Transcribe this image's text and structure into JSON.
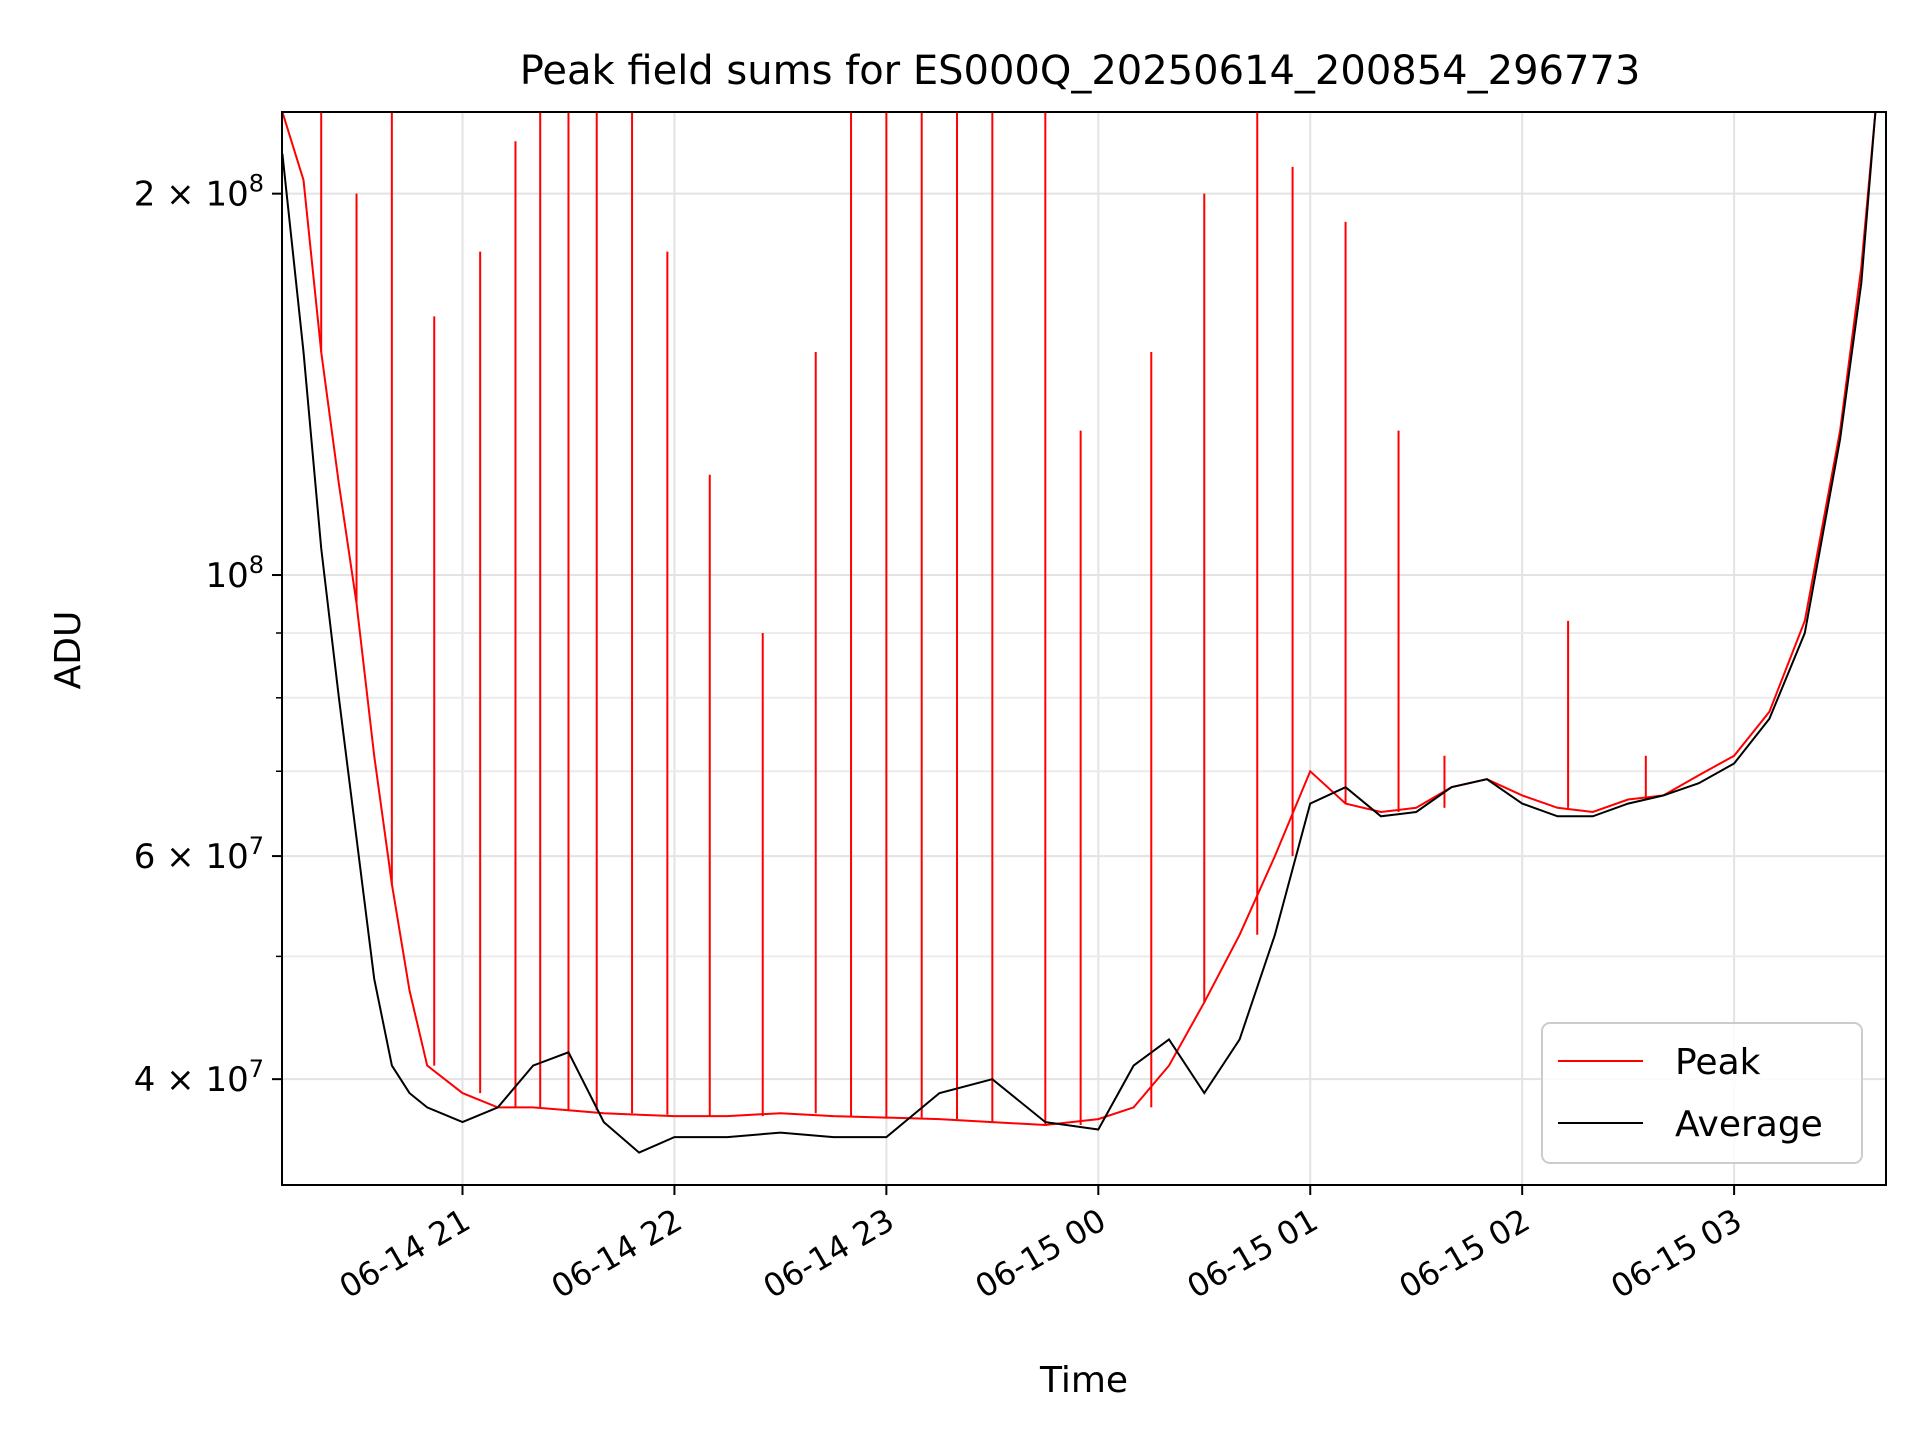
{
  "chart_data": {
    "type": "line",
    "title": "Peak field sums for ES000Q_20250614_200854_296773",
    "xlabel": "Time",
    "ylabel": "ADU",
    "y_scale": "log",
    "ylim": [
      33000000,
      232000000
    ],
    "xlim": [
      "2025-06-14 20:08:54",
      "2025-06-15 03:43:00"
    ],
    "grid": true,
    "legend_position": "lower right",
    "x_ticks": [
      {
        "t": "2025-06-14 21:00:00",
        "label": "06-14 21"
      },
      {
        "t": "2025-06-14 22:00:00",
        "label": "06-14 22"
      },
      {
        "t": "2025-06-14 23:00:00",
        "label": "06-14 23"
      },
      {
        "t": "2025-06-15 00:00:00",
        "label": "06-15 00"
      },
      {
        "t": "2025-06-15 01:00:00",
        "label": "06-15 01"
      },
      {
        "t": "2025-06-15 02:00:00",
        "label": "06-15 02"
      },
      {
        "t": "2025-06-15 03:00:00",
        "label": "06-15 03"
      }
    ],
    "y_major_ticks": [
      {
        "value": 40000000,
        "mantissa": "4",
        "exponent": "7"
      },
      {
        "value": 60000000,
        "mantissa": "6",
        "exponent": "7"
      },
      {
        "value": 100000000,
        "mantissa": "",
        "exponent": "8"
      },
      {
        "value": 200000000,
        "mantissa": "2",
        "exponent": "8"
      }
    ],
    "y_minor_ticks": [
      50000000,
      70000000,
      80000000,
      90000000
    ],
    "series": [
      {
        "name": "Peak",
        "color": "#ff0000",
        "x": [
          "2025-06-14 20:09",
          "2025-06-14 20:15",
          "2025-06-14 20:20",
          "2025-06-14 20:25",
          "2025-06-14 20:30",
          "2025-06-14 20:35",
          "2025-06-14 20:40",
          "2025-06-14 20:45",
          "2025-06-14 20:50",
          "2025-06-14 21:00",
          "2025-06-14 21:10",
          "2025-06-14 21:20",
          "2025-06-14 21:30",
          "2025-06-14 21:40",
          "2025-06-14 21:50",
          "2025-06-14 22:00",
          "2025-06-14 22:15",
          "2025-06-14 22:30",
          "2025-06-14 22:45",
          "2025-06-14 23:00",
          "2025-06-14 23:15",
          "2025-06-14 23:30",
          "2025-06-14 23:45",
          "2025-06-15 00:00",
          "2025-06-15 00:10",
          "2025-06-15 00:20",
          "2025-06-15 00:30",
          "2025-06-15 00:40",
          "2025-06-15 00:50",
          "2025-06-15 01:00",
          "2025-06-15 01:10",
          "2025-06-15 01:20",
          "2025-06-15 01:30",
          "2025-06-15 01:40",
          "2025-06-15 01:50",
          "2025-06-15 02:00",
          "2025-06-15 02:10",
          "2025-06-15 02:20",
          "2025-06-15 02:30",
          "2025-06-15 02:40",
          "2025-06-15 02:50",
          "2025-06-15 03:00",
          "2025-06-15 03:10",
          "2025-06-15 03:20",
          "2025-06-15 03:30",
          "2025-06-15 03:36",
          "2025-06-15 03:40"
        ],
        "y": [
          232000000,
          205000000,
          150000000,
          118000000,
          95000000,
          72000000,
          57000000,
          47000000,
          41000000,
          39000000,
          38000000,
          38000000,
          37800000,
          37600000,
          37500000,
          37400000,
          37400000,
          37600000,
          37400000,
          37300000,
          37200000,
          37000000,
          36800000,
          37200000,
          38000000,
          41000000,
          46000000,
          52000000,
          60000000,
          70000000,
          66000000,
          65000000,
          65500000,
          68000000,
          69000000,
          67000000,
          65500000,
          65000000,
          66500000,
          67000000,
          69500000,
          72000000,
          78000000,
          92000000,
          130000000,
          175000000,
          232000000
        ],
        "spikes": [
          {
            "x": "2025-06-14 20:20",
            "y": 232000000
          },
          {
            "x": "2025-06-14 20:30",
            "y": 200000000
          },
          {
            "x": "2025-06-14 20:40",
            "y": 232000000
          },
          {
            "x": "2025-06-14 20:52",
            "y": 160000000
          },
          {
            "x": "2025-06-14 21:05",
            "y": 180000000
          },
          {
            "x": "2025-06-14 21:15",
            "y": 220000000
          },
          {
            "x": "2025-06-14 21:22",
            "y": 232000000
          },
          {
            "x": "2025-06-14 21:30",
            "y": 232000000
          },
          {
            "x": "2025-06-14 21:38",
            "y": 232000000
          },
          {
            "x": "2025-06-14 21:48",
            "y": 232000000
          },
          {
            "x": "2025-06-14 21:58",
            "y": 180000000
          },
          {
            "x": "2025-06-14 22:10",
            "y": 120000000
          },
          {
            "x": "2025-06-14 22:25",
            "y": 90000000
          },
          {
            "x": "2025-06-14 22:40",
            "y": 150000000
          },
          {
            "x": "2025-06-14 22:50",
            "y": 232000000
          },
          {
            "x": "2025-06-14 23:00",
            "y": 232000000
          },
          {
            "x": "2025-06-14 23:10",
            "y": 232000000
          },
          {
            "x": "2025-06-14 23:20",
            "y": 232000000
          },
          {
            "x": "2025-06-14 23:30",
            "y": 232000000
          },
          {
            "x": "2025-06-14 23:45",
            "y": 232000000
          },
          {
            "x": "2025-06-14 23:55",
            "y": 130000000
          },
          {
            "x": "2025-06-15 00:15",
            "y": 150000000
          },
          {
            "x": "2025-06-15 00:30",
            "y": 200000000
          },
          {
            "x": "2025-06-15 00:45",
            "y": 232000000
          },
          {
            "x": "2025-06-15 00:55",
            "y": 210000000
          },
          {
            "x": "2025-06-15 01:10",
            "y": 190000000
          },
          {
            "x": "2025-06-15 01:25",
            "y": 130000000
          },
          {
            "x": "2025-06-15 01:38",
            "y": 72000000
          },
          {
            "x": "2025-06-15 02:13",
            "y": 92000000
          },
          {
            "x": "2025-06-15 02:35",
            "y": 72000000
          }
        ]
      },
      {
        "name": "Average",
        "color": "#000000",
        "x": [
          "2025-06-14 20:09",
          "2025-06-14 20:15",
          "2025-06-14 20:20",
          "2025-06-14 20:25",
          "2025-06-14 20:30",
          "2025-06-14 20:35",
          "2025-06-14 20:40",
          "2025-06-14 20:45",
          "2025-06-14 20:50",
          "2025-06-14 21:00",
          "2025-06-14 21:10",
          "2025-06-14 21:20",
          "2025-06-14 21:30",
          "2025-06-14 21:40",
          "2025-06-14 21:50",
          "2025-06-14 22:00",
          "2025-06-14 22:15",
          "2025-06-14 22:30",
          "2025-06-14 22:45",
          "2025-06-14 23:00",
          "2025-06-14 23:15",
          "2025-06-14 23:30",
          "2025-06-14 23:45",
          "2025-06-15 00:00",
          "2025-06-15 00:10",
          "2025-06-15 00:20",
          "2025-06-15 00:30",
          "2025-06-15 00:40",
          "2025-06-15 00:50",
          "2025-06-15 01:00",
          "2025-06-15 01:10",
          "2025-06-15 01:20",
          "2025-06-15 01:30",
          "2025-06-15 01:40",
          "2025-06-15 01:50",
          "2025-06-15 02:00",
          "2025-06-15 02:10",
          "2025-06-15 02:20",
          "2025-06-15 02:30",
          "2025-06-15 02:40",
          "2025-06-15 02:50",
          "2025-06-15 03:00",
          "2025-06-15 03:10",
          "2025-06-15 03:20",
          "2025-06-15 03:30",
          "2025-06-15 03:36",
          "2025-06-15 03:40"
        ],
        "y": [
          215000000,
          150000000,
          105000000,
          80000000,
          62000000,
          48000000,
          41000000,
          39000000,
          38000000,
          37000000,
          38000000,
          41000000,
          42000000,
          37000000,
          35000000,
          36000000,
          36000000,
          36300000,
          36000000,
          36000000,
          39000000,
          40000000,
          37000000,
          36500000,
          41000000,
          43000000,
          39000000,
          43000000,
          52000000,
          66000000,
          68000000,
          64500000,
          65000000,
          68000000,
          69000000,
          66000000,
          64500000,
          64500000,
          66000000,
          67000000,
          68500000,
          71000000,
          77000000,
          90000000,
          128000000,
          170000000,
          232000000
        ]
      }
    ]
  }
}
